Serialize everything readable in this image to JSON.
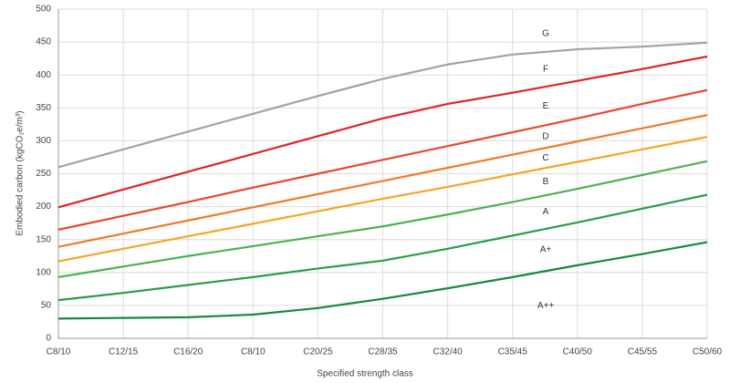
{
  "chart_data": {
    "type": "line",
    "y_label": "Embodied carbon (kgCO₂e/m³)",
    "x_label": "Specified strength class",
    "categories": [
      "C8/10",
      "C12/15",
      "C16/20",
      "C8/10",
      "C20/25",
      "C28/35",
      "C32/40",
      "C35/45",
      "C40/50",
      "C45/55",
      "C50/60"
    ],
    "ylim": [
      0,
      500
    ],
    "yticks": [
      0,
      50,
      100,
      150,
      200,
      250,
      300,
      350,
      400,
      450,
      500
    ],
    "grid": true,
    "band_labels": [
      "G",
      "F",
      "E",
      "D",
      "C",
      "B",
      "A",
      "A+",
      "A++"
    ],
    "series": [
      {
        "color": "#a3a3a3",
        "values": [
          260,
          287,
          314,
          341,
          368,
          394,
          416,
          431,
          439,
          443,
          449
        ]
      },
      {
        "color": "#e1232a",
        "values": [
          199,
          226,
          253,
          280,
          307,
          334,
          356,
          373,
          391,
          409,
          428
        ]
      },
      {
        "color": "#e8482b",
        "values": [
          165,
          186,
          207,
          229,
          250,
          271,
          292,
          313,
          334,
          356,
          377
        ]
      },
      {
        "color": "#ee7b28",
        "values": [
          139,
          159,
          179,
          199,
          219,
          239,
          259,
          279,
          299,
          319,
          339
        ]
      },
      {
        "color": "#f5a623",
        "values": [
          117,
          136,
          155,
          174,
          193,
          212,
          230,
          249,
          268,
          287,
          306
        ]
      },
      {
        "color": "#4cb253",
        "values": [
          93,
          109,
          125,
          140,
          155,
          170,
          188,
          207,
          227,
          248,
          269
        ]
      },
      {
        "color": "#2a9e45",
        "values": [
          58,
          69,
          81,
          93,
          106,
          118,
          136,
          156,
          176,
          197,
          218
        ]
      },
      {
        "color": "#168a3a",
        "values": [
          30,
          31,
          32,
          36,
          46,
          60,
          76,
          93,
          111,
          128,
          146
        ]
      }
    ]
  }
}
